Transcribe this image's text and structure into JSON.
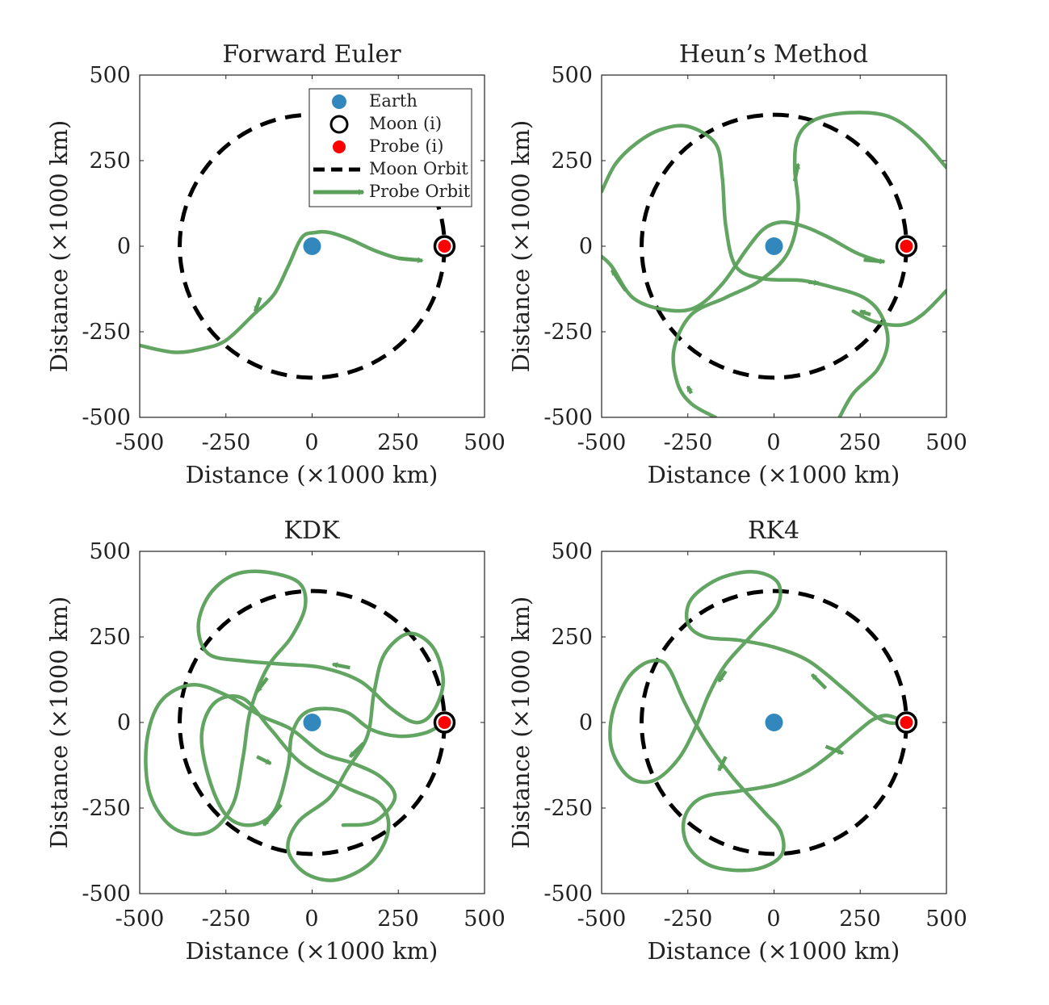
{
  "chart_data": [
    {
      "type": "line",
      "title": "Forward Euler",
      "xlabel": "Distance (×1000 km)",
      "ylabel": "Distance (×1000 km)",
      "xlim": [
        -500,
        500
      ],
      "ylim": [
        -500,
        500
      ],
      "xticks": [
        "-500",
        "-250",
        "0",
        "250",
        "500"
      ],
      "yticks": [
        "500",
        "250",
        "0",
        "-250",
        "-500"
      ],
      "grid": false,
      "legend": {
        "position": "top-right",
        "entries": [
          "Earth",
          "Moon (i)",
          "Probe (i)",
          "Moon Orbit",
          "Probe Orbit"
        ]
      },
      "earth": [
        0,
        0
      ],
      "moon_initial": [
        384,
        0
      ],
      "probe_initial": [
        384,
        0
      ],
      "moon_orbit_radius": 384,
      "probe_orbit": [
        [
          310,
          -40
        ],
        [
          250,
          -35
        ],
        [
          180,
          -12
        ],
        [
          110,
          20
        ],
        [
          50,
          40
        ],
        [
          10,
          40
        ],
        [
          -30,
          25
        ],
        [
          -70,
          -60
        ],
        [
          -110,
          -140
        ],
        [
          -170,
          -200
        ],
        [
          -250,
          -275
        ],
        [
          -320,
          -300
        ],
        [
          -400,
          -310
        ],
        [
          -500,
          -290
        ]
      ],
      "arrows": [
        [
          250,
          -35,
          320,
          -42
        ],
        [
          -150,
          -150,
          -165,
          -190
        ]
      ]
    },
    {
      "type": "line",
      "title": "Heun’s Method",
      "xlabel": "Distance (×1000 km)",
      "ylabel": "Distance (×1000 km)",
      "xlim": [
        -500,
        500
      ],
      "ylim": [
        -500,
        500
      ],
      "xticks": [
        "-500",
        "-250",
        "0",
        "250",
        "500"
      ],
      "yticks": [
        "500",
        "250",
        "0",
        "-250",
        "-500"
      ],
      "grid": false,
      "earth": [
        0,
        0
      ],
      "moon_initial": [
        384,
        0
      ],
      "probe_initial": [
        384,
        0
      ],
      "moon_orbit_radius": 384,
      "probe_orbit": [
        [
          [
            310,
            -45
          ],
          [
            240,
            -20
          ],
          [
            150,
            30
          ],
          [
            80,
            60
          ],
          [
            20,
            70
          ],
          [
            -30,
            50
          ],
          [
            -80,
            -10
          ],
          [
            -150,
            -110
          ],
          [
            -230,
            -180
          ],
          [
            -320,
            -185
          ],
          [
            -410,
            -150
          ],
          [
            -470,
            -60
          ],
          [
            -500,
            -30
          ]
        ],
        [
          [
            -500,
            160
          ],
          [
            -460,
            240
          ],
          [
            -400,
            300
          ],
          [
            -330,
            340
          ],
          [
            -250,
            350
          ],
          [
            -170,
            300
          ],
          [
            -150,
            200
          ],
          [
            -140,
            60
          ],
          [
            -110,
            -60
          ],
          [
            -30,
            -95
          ],
          [
            80,
            -100
          ],
          [
            170,
            -120
          ],
          [
            260,
            -150
          ],
          [
            310,
            -200
          ],
          [
            330,
            -280
          ],
          [
            300,
            -360
          ],
          [
            230,
            -430
          ],
          [
            190,
            -500
          ]
        ],
        [
          [
            500,
            -130
          ],
          [
            430,
            -200
          ],
          [
            370,
            -230
          ],
          [
            290,
            -220
          ],
          [
            230,
            -190
          ]
        ],
        [
          [
            500,
            230
          ],
          [
            420,
            320
          ],
          [
            330,
            380
          ],
          [
            220,
            390
          ],
          [
            120,
            370
          ],
          [
            70,
            320
          ],
          [
            60,
            230
          ],
          [
            70,
            100
          ],
          [
            40,
            -20
          ],
          [
            -40,
            -100
          ],
          [
            -140,
            -150
          ],
          [
            -240,
            -200
          ],
          [
            -290,
            -300
          ],
          [
            -280,
            -400
          ],
          [
            -240,
            -460
          ],
          [
            -170,
            -500
          ]
        ]
      ],
      "arrows": [
        [
          260,
          -40,
          320,
          -45
        ],
        [
          -430,
          -130,
          -470,
          -70
        ],
        [
          60,
          190,
          70,
          240
        ],
        [
          100,
          -105,
          130,
          -108
        ],
        [
          280,
          -200,
          250,
          -190
        ],
        [
          -240,
          -430,
          -250,
          -410
        ]
      ]
    },
    {
      "type": "line",
      "title": "KDK",
      "xlabel": "Distance (×1000 km)",
      "ylabel": "Distance (×1000 km)",
      "xlim": [
        -500,
        500
      ],
      "ylim": [
        -500,
        500
      ],
      "xticks": [
        "-500",
        "-250",
        "0",
        "250",
        "500"
      ],
      "yticks": [
        "500",
        "250",
        "0",
        "-250",
        "-500"
      ],
      "grid": false,
      "earth": [
        0,
        0
      ],
      "moon_initial": [
        384,
        0
      ],
      "probe_initial": [
        384,
        0
      ],
      "moon_orbit_radius": 384,
      "probe_orbit": [
        [
          384,
          0
        ],
        [
          330,
          -30
        ],
        [
          250,
          -40
        ],
        [
          170,
          -20
        ],
        [
          100,
          30
        ],
        [
          20,
          40
        ],
        [
          -30,
          20
        ],
        [
          -60,
          -40
        ],
        [
          -70,
          -130
        ],
        [
          -110,
          -260
        ],
        [
          -180,
          -300
        ],
        [
          -250,
          -270
        ],
        [
          -300,
          -160
        ],
        [
          -320,
          -30
        ],
        [
          -280,
          60
        ],
        [
          -200,
          70
        ],
        [
          -120,
          -20
        ],
        [
          -30,
          -120
        ],
        [
          100,
          -190
        ],
        [
          200,
          -240
        ],
        [
          220,
          -320
        ],
        [
          170,
          -410
        ],
        [
          70,
          -460
        ],
        [
          -20,
          -440
        ],
        [
          -70,
          -370
        ],
        [
          -40,
          -290
        ],
        [
          50,
          -220
        ],
        [
          100,
          -140
        ],
        [
          160,
          -40
        ],
        [
          180,
          90
        ],
        [
          210,
          200
        ],
        [
          280,
          260
        ],
        [
          350,
          220
        ],
        [
          380,
          120
        ],
        [
          350,
          30
        ],
        [
          300,
          0
        ],
        [
          230,
          40
        ],
        [
          140,
          120
        ],
        [
          30,
          160
        ],
        [
          -80,
          170
        ],
        [
          -200,
          180
        ],
        [
          -300,
          200
        ],
        [
          -330,
          280
        ],
        [
          -300,
          370
        ],
        [
          -230,
          430
        ],
        [
          -140,
          440
        ],
        [
          -40,
          410
        ],
        [
          -20,
          340
        ],
        [
          -60,
          250
        ],
        [
          -130,
          160
        ],
        [
          -180,
          30
        ],
        [
          -200,
          -100
        ],
        [
          -230,
          -240
        ],
        [
          -300,
          -320
        ],
        [
          -400,
          -310
        ],
        [
          -470,
          -210
        ],
        [
          -480,
          -60
        ],
        [
          -440,
          60
        ],
        [
          -350,
          110
        ],
        [
          -250,
          80
        ],
        [
          -150,
          20
        ],
        [
          -60,
          -20
        ],
        [
          30,
          -90
        ],
        [
          120,
          -120
        ],
        [
          200,
          -160
        ],
        [
          240,
          -220
        ],
        [
          180,
          -290
        ],
        [
          90,
          -300
        ]
      ],
      "arrows": [
        [
          150,
          -60,
          110,
          -100
        ],
        [
          -160,
          -100,
          -120,
          -120
        ],
        [
          -130,
          130,
          -160,
          90
        ],
        [
          110,
          160,
          60,
          170
        ],
        [
          -90,
          -240,
          -140,
          -300
        ]
      ]
    },
    {
      "type": "line",
      "title": "RK4",
      "xlabel": "Distance (×1000 km)",
      "ylabel": "Distance (×1000 km)",
      "xlim": [
        -500,
        500
      ],
      "ylim": [
        -500,
        500
      ],
      "xticks": [
        "-500",
        "-250",
        "0",
        "250",
        "500"
      ],
      "yticks": [
        "500",
        "250",
        "0",
        "-250",
        "-500"
      ],
      "grid": false,
      "earth": [
        0,
        0
      ],
      "moon_initial": [
        384,
        0
      ],
      "probe_initial": [
        384,
        0
      ],
      "moon_orbit_radius": 384,
      "probe_orbit": [
        [
          384,
          0
        ],
        [
          330,
          20
        ],
        [
          290,
          10
        ],
        [
          250,
          -20
        ],
        [
          180,
          -80
        ],
        [
          100,
          -140
        ],
        [
          10,
          -180
        ],
        [
          -100,
          -200
        ],
        [
          -210,
          -220
        ],
        [
          -260,
          -280
        ],
        [
          -250,
          -360
        ],
        [
          -180,
          -420
        ],
        [
          -60,
          -430
        ],
        [
          20,
          -390
        ],
        [
          20,
          -320
        ],
        [
          -30,
          -260
        ],
        [
          -120,
          -160
        ],
        [
          -200,
          -50
        ],
        [
          -260,
          60
        ],
        [
          -300,
          150
        ],
        [
          -330,
          180
        ],
        [
          -380,
          170
        ],
        [
          -430,
          120
        ],
        [
          -470,
          20
        ],
        [
          -470,
          -80
        ],
        [
          -420,
          -160
        ],
        [
          -350,
          -170
        ],
        [
          -280,
          -110
        ],
        [
          -230,
          -20
        ],
        [
          -190,
          80
        ],
        [
          -140,
          170
        ],
        [
          -60,
          260
        ],
        [
          10,
          340
        ],
        [
          10,
          410
        ],
        [
          -60,
          440
        ],
        [
          -160,
          420
        ],
        [
          -240,
          360
        ],
        [
          -250,
          290
        ],
        [
          -200,
          250
        ],
        [
          -100,
          240
        ],
        [
          0,
          220
        ],
        [
          100,
          180
        ],
        [
          200,
          100
        ],
        [
          280,
          30
        ],
        [
          330,
          0
        ],
        [
          384,
          0
        ]
      ],
      "arrows": [
        [
          150,
          100,
          110,
          140
        ],
        [
          -140,
          -100,
          -160,
          -140
        ],
        [
          -140,
          150,
          -160,
          120
        ],
        [
          150,
          -70,
          200,
          -90
        ]
      ]
    }
  ],
  "colors": {
    "earth": "#3288bd",
    "moon_ring": "#000000",
    "probe": "#ff0000",
    "moon_orbit": "#000000",
    "probe_orbit": "#5aa05a"
  }
}
